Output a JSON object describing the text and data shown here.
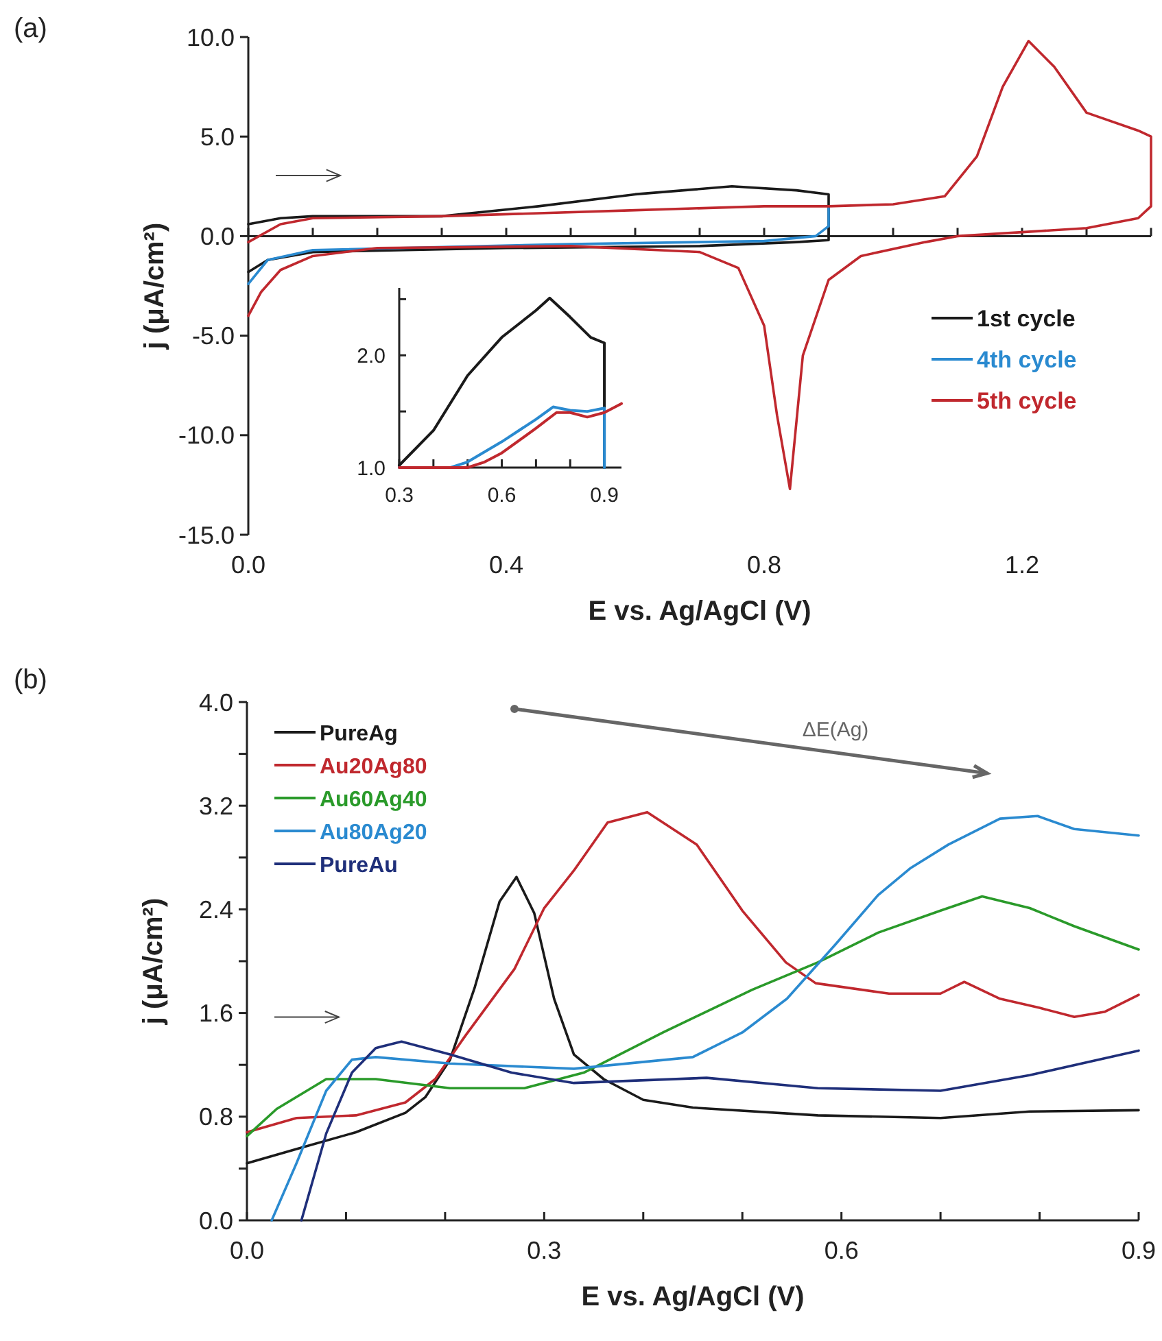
{
  "chart_data": [
    {
      "type": "line",
      "xlabel": "E vs. Ag/AgCl (V)",
      "ylabel": "j (μA/cm²)",
      "annotations": [
        "(a)"
      ],
      "legend": "bottom right",
      "xlim": [
        0,
        1.4
      ],
      "xticks": [
        {
          "value": 0,
          "label": "0.0"
        },
        {
          "value": 0.1,
          "label": null
        },
        {
          "value": 0.2,
          "label": null
        },
        {
          "value": 0.3,
          "label": null
        },
        0.4,
        {
          "value": 0.5,
          "label": null
        },
        {
          "value": 0.6,
          "label": null
        },
        {
          "value": 0.7,
          "label": null
        },
        0.8,
        {
          "value": 0.9,
          "label": null
        },
        {
          "value": 1.0,
          "label": null
        },
        {
          "value": 1.1,
          "label": null
        },
        1.2,
        {
          "value": 1.3,
          "label": null
        },
        {
          "value": 1.4,
          "label": null
        }
      ],
      "ylim": [
        -15,
        10
      ],
      "yticks": [
        {
          "value": -15,
          "label": "-15.0"
        },
        {
          "value": -10,
          "label": "-10.0"
        },
        {
          "value": -5,
          "label": "-5.0"
        },
        {
          "value": 0,
          "label": "0.0"
        },
        {
          "value": 5,
          "label": "5.0"
        },
        {
          "value": 10,
          "label": "10.0"
        }
      ],
      "series": [
        {
          "name": "1st cycle",
          "color": "#1a1a1a",
          "x": [
            0,
            0.05,
            0.1,
            0.3,
            0.45,
            0.6,
            0.75,
            0.85,
            0.9,
            0.9,
            0.85,
            0.7,
            0.4,
            0.1,
            0.03,
            0
          ],
          "values": [
            0.6,
            0.9,
            1.0,
            1.0,
            1.5,
            2.1,
            2.5,
            2.3,
            2.1,
            -0.2,
            -0.3,
            -0.5,
            -0.6,
            -0.8,
            -1.2,
            -1.8
          ]
        },
        {
          "name": "4th cycle",
          "color": "#2a8ad0",
          "x": [
            0.9,
            0.9,
            0.88,
            0.8,
            0.5,
            0.1,
            0.03,
            0
          ],
          "values": [
            1.5,
            0.5,
            0.0,
            -0.25,
            -0.4,
            -0.7,
            -1.2,
            -2.4
          ]
        },
        {
          "name": "5th cycle",
          "color": "#c0282e",
          "x": [
            0,
            0.05,
            0.1,
            0.3,
            0.6,
            0.8,
            0.9,
            1.0,
            1.08,
            1.13,
            1.17,
            1.21,
            1.25,
            1.3,
            1.38,
            1.4,
            1.4,
            1.38,
            1.3,
            1.2,
            1.1,
            1.05,
            0.95,
            0.9,
            0.86,
            0.84,
            0.82,
            0.8,
            0.76,
            0.7,
            0.5,
            0.2,
            0.1,
            0.05,
            0.02,
            0
          ],
          "values": [
            -0.3,
            0.6,
            0.9,
            1.0,
            1.3,
            1.5,
            1.5,
            1.6,
            2.0,
            4.0,
            7.5,
            9.8,
            8.5,
            6.2,
            5.3,
            5.0,
            1.5,
            0.9,
            0.4,
            0.2,
            0.0,
            -0.3,
            -1.0,
            -2.2,
            -6.0,
            -12.7,
            -9.0,
            -4.5,
            -1.6,
            -0.8,
            -0.5,
            -0.6,
            -1.0,
            -1.7,
            -2.8,
            -4.0
          ]
        }
      ]
    },
    {
      "type": "line",
      "legend": false,
      "grid": false,
      "xlim": [
        0.3,
        0.95
      ],
      "xticks": [
        0.3,
        {
          "value": 0.4,
          "label": null
        },
        {
          "value": 0.5,
          "label": null
        },
        0.6,
        {
          "value": 0.7,
          "label": null
        },
        {
          "value": 0.8,
          "label": null
        },
        0.9
      ],
      "ylim": [
        1.0,
        2.6
      ],
      "yticks": [
        {
          "value": 1,
          "label": "1.0"
        },
        {
          "value": 1.5,
          "label": null
        },
        {
          "value": 2,
          "label": "2.0"
        },
        {
          "value": 2.5,
          "label": null
        }
      ],
      "series": [
        {
          "color": "#1a1a1a",
          "x": [
            0.3,
            0.4,
            0.5,
            0.6,
            0.7,
            0.74,
            0.8,
            0.86,
            0.9,
            0.9
          ],
          "values": [
            1.02,
            1.33,
            1.82,
            2.16,
            2.4,
            2.51,
            2.34,
            2.16,
            2.11,
            1.0
          ]
        },
        {
          "color": "#2a8ad0",
          "x": [
            0.3,
            0.45,
            0.5,
            0.6,
            0.7,
            0.75,
            0.8,
            0.85,
            0.9,
            0.9
          ],
          "values": [
            1.0,
            1.0,
            1.05,
            1.23,
            1.43,
            1.54,
            1.51,
            1.5,
            1.53,
            1.0
          ]
        },
        {
          "color": "#c0282e",
          "x": [
            0.3,
            0.5,
            0.55,
            0.6,
            0.7,
            0.76,
            0.8,
            0.85,
            0.9,
            0.95
          ],
          "values": [
            1.0,
            1.0,
            1.05,
            1.13,
            1.35,
            1.49,
            1.49,
            1.45,
            1.49,
            1.57
          ]
        }
      ]
    },
    {
      "type": "line",
      "xlabel": "E vs. Ag/AgCl (V)",
      "ylabel": "j (μA/cm²)",
      "annotations": [
        "(b)",
        "ΔE(Ag)"
      ],
      "legend": "top left",
      "grid": false,
      "xlim": [
        0,
        0.9
      ],
      "xticks": [
        {
          "value": 0,
          "label": "0.0"
        },
        {
          "value": 0.1,
          "label": null
        },
        {
          "value": 0.2,
          "label": null
        },
        0.3,
        {
          "value": 0.4,
          "label": null
        },
        {
          "value": 0.5,
          "label": null
        },
        0.6,
        {
          "value": 0.7,
          "label": null
        },
        {
          "value": 0.8,
          "label": null
        },
        0.9
      ],
      "ylim": [
        0,
        4
      ],
      "yticks": [
        {
          "value": 0,
          "label": "0.0"
        },
        {
          "value": 0.4,
          "label": null
        },
        0.8,
        {
          "value": 1.2,
          "label": null
        },
        1.6,
        {
          "value": 2.0,
          "label": null
        },
        2.4,
        {
          "value": 2.8,
          "label": null
        },
        3.2,
        {
          "value": 3.6,
          "label": null
        },
        {
          "value": 4,
          "label": "4.0"
        }
      ],
      "series": [
        {
          "name": "PureAg",
          "color": "#1a1a1a",
          "x": [
            0,
            0.05,
            0.11,
            0.16,
            0.18,
            0.205,
            0.23,
            0.255,
            0.272,
            0.29,
            0.31,
            0.33,
            0.36,
            0.4,
            0.45,
            0.576,
            0.7,
            0.79,
            0.9
          ],
          "values": [
            0.44,
            0.55,
            0.68,
            0.83,
            0.95,
            1.24,
            1.8,
            2.46,
            2.65,
            2.37,
            1.71,
            1.28,
            1.09,
            0.93,
            0.87,
            0.81,
            0.79,
            0.84,
            0.85
          ]
        },
        {
          "name": "Au20Ag80",
          "color": "#c0282e",
          "x": [
            0,
            0.05,
            0.11,
            0.16,
            0.19,
            0.22,
            0.27,
            0.3,
            0.33,
            0.364,
            0.404,
            0.454,
            0.5,
            0.544,
            0.574,
            0.648,
            0.7,
            0.724,
            0.76,
            0.8,
            0.835,
            0.866,
            0.9
          ],
          "values": [
            0.68,
            0.79,
            0.81,
            0.91,
            1.09,
            1.42,
            1.94,
            2.41,
            2.7,
            3.07,
            3.15,
            2.9,
            2.39,
            1.99,
            1.83,
            1.75,
            1.75,
            1.84,
            1.71,
            1.64,
            1.57,
            1.61,
            1.74
          ]
        },
        {
          "name": "Au60Ag40",
          "color": "#2a9a2a",
          "x": [
            0,
            0.03,
            0.08,
            0.13,
            0.205,
            0.28,
            0.34,
            0.42,
            0.51,
            0.576,
            0.637,
            0.7,
            0.742,
            0.79,
            0.835,
            0.9
          ],
          "values": [
            0.65,
            0.86,
            1.09,
            1.09,
            1.02,
            1.02,
            1.14,
            1.45,
            1.78,
            1.99,
            2.22,
            2.39,
            2.5,
            2.41,
            2.27,
            2.09
          ]
        },
        {
          "name": "Au80Ag20",
          "color": "#2a8ad0",
          "x": [
            0.025,
            0.05,
            0.08,
            0.106,
            0.13,
            0.205,
            0.33,
            0.45,
            0.5,
            0.545,
            0.594,
            0.637,
            0.67,
            0.708,
            0.76,
            0.798,
            0.835,
            0.9
          ],
          "values": [
            0,
            0.44,
            1.0,
            1.24,
            1.26,
            1.21,
            1.17,
            1.26,
            1.45,
            1.71,
            2.13,
            2.51,
            2.72,
            2.9,
            3.1,
            3.12,
            3.02,
            2.97
          ]
        },
        {
          "name": "PureAu",
          "color": "#1f2f7a",
          "x": [
            0.055,
            0.08,
            0.106,
            0.13,
            0.156,
            0.205,
            0.267,
            0.33,
            0.464,
            0.576,
            0.7,
            0.79,
            0.9
          ],
          "values": [
            0,
            0.67,
            1.14,
            1.33,
            1.38,
            1.28,
            1.14,
            1.06,
            1.1,
            1.02,
            1.0,
            1.12,
            1.31
          ]
        }
      ]
    }
  ]
}
